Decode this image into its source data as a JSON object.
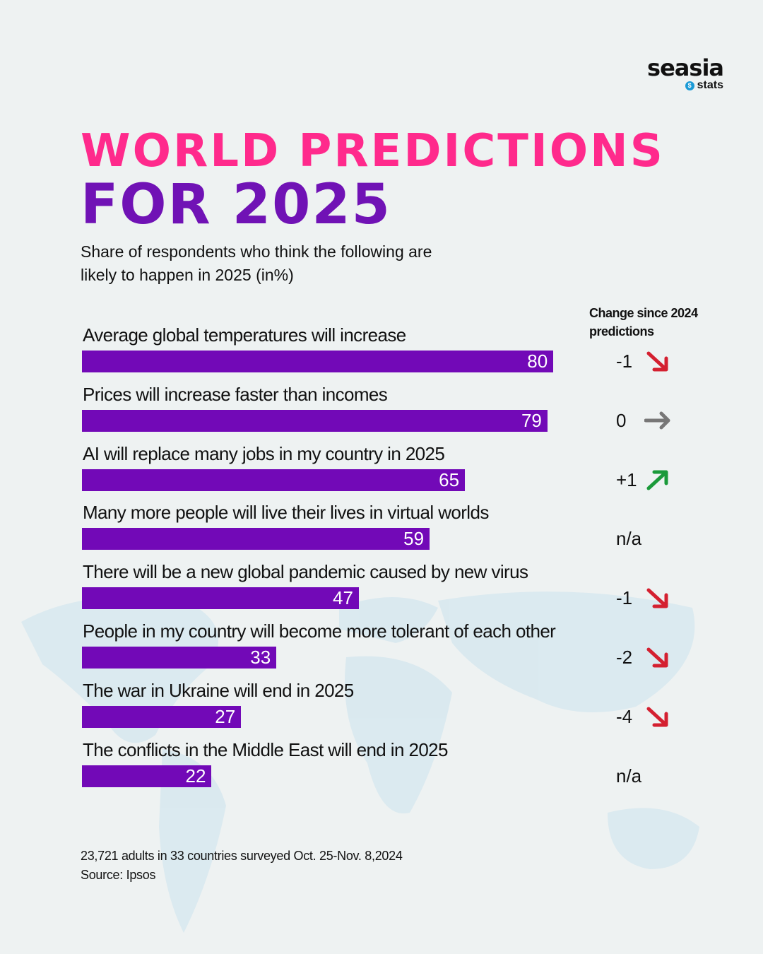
{
  "logo": {
    "brand": "seasia",
    "sub": "stats"
  },
  "title_line1": "WORLD PREDICTIONS",
  "title_line2": "FOR 2025",
  "subtitle": "Share  of respondents who think  the following are likely to happen in 2025 (in%)",
  "change_header": "Change since 2024 predictions",
  "colors": {
    "bar": "#7209b7",
    "down": "#d42030",
    "flat": "#777777",
    "up": "#1a9a3a",
    "title1": "#ff2a8c",
    "title2": "#7012b5"
  },
  "chart_data": {
    "type": "bar",
    "orientation": "horizontal",
    "xlim": [
      0,
      100
    ],
    "categories": [
      "Average global temperatures will increase",
      "Prices will increase faster than incomes",
      "AI will replace many jobs in my country in 2025",
      "Many more people will live their lives in virtual worlds",
      "There will be a new global pandemic caused by new virus",
      "People in my country will become more tolerant of each other",
      "The war in Ukraine will end in 2025",
      "The conflicts in the Middle East will end in 2025"
    ],
    "values": [
      80,
      79,
      65,
      59,
      47,
      33,
      27,
      22
    ],
    "changes": [
      "-1",
      "0",
      "+1",
      "n/a",
      "-1",
      "-2",
      "-4",
      "n/a"
    ],
    "change_icons": [
      "arrow-down-right-icon",
      "arrow-right-icon",
      "arrow-up-right-icon",
      "",
      "arrow-down-right-icon",
      "arrow-down-right-icon",
      "arrow-down-right-icon",
      ""
    ]
  },
  "footer": {
    "note": "23,721 adults in 33 countries surveyed Oct. 25-Nov. 8,2024",
    "source": "Source: Ipsos"
  }
}
